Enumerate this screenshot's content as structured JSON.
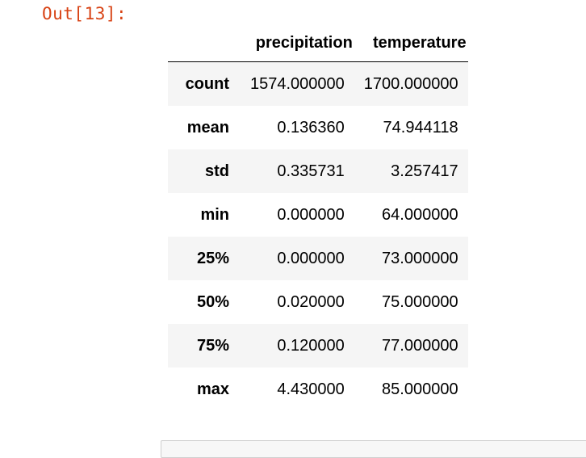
{
  "prompt": "Out[13]:",
  "table": {
    "columns": [
      "precipitation",
      "temperature"
    ],
    "rows": [
      {
        "label": "count",
        "values": [
          "1574.000000",
          "1700.000000"
        ]
      },
      {
        "label": "mean",
        "values": [
          "0.136360",
          "74.944118"
        ]
      },
      {
        "label": "std",
        "values": [
          "0.335731",
          "3.257417"
        ]
      },
      {
        "label": "min",
        "values": [
          "0.000000",
          "64.000000"
        ]
      },
      {
        "label": "25%",
        "values": [
          "0.000000",
          "73.000000"
        ]
      },
      {
        "label": "50%",
        "values": [
          "0.020000",
          "75.000000"
        ]
      },
      {
        "label": "75%",
        "values": [
          "0.120000",
          "77.000000"
        ]
      },
      {
        "label": "max",
        "values": [
          "4.430000",
          "85.000000"
        ]
      }
    ]
  }
}
